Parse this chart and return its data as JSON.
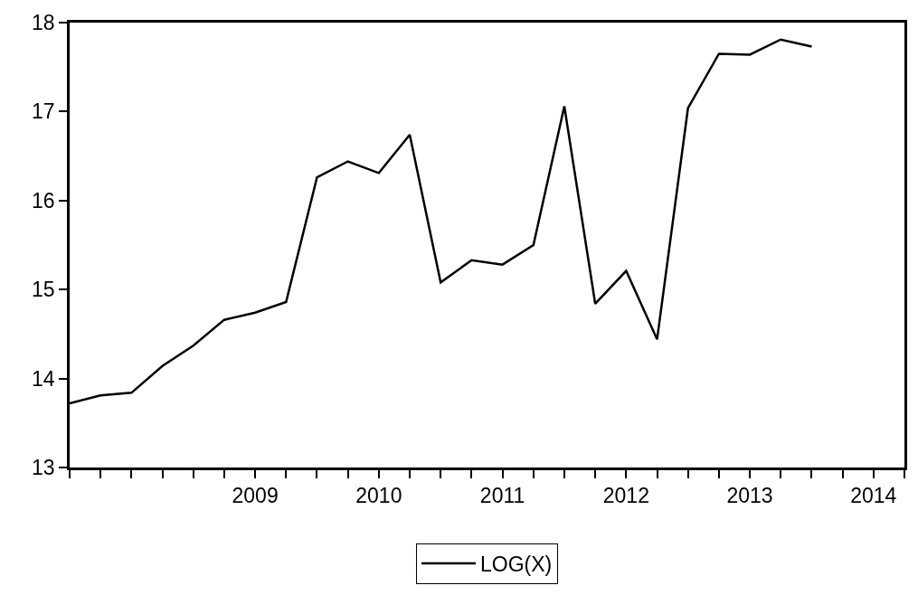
{
  "chart_data": {
    "type": "line",
    "x": [
      2008,
      2008.25,
      2008.5,
      2008.75,
      2009,
      2009.25,
      2009.5,
      2009.75,
      2010,
      2010.25,
      2010.5,
      2010.75,
      2011,
      2011.25,
      2011.5,
      2011.75,
      2012,
      2012.25,
      2012.5,
      2012.75,
      2013,
      2013.25,
      2013.5,
      2013.75,
      2014
    ],
    "series": [
      {
        "name": "LOG(X)",
        "color": "#000000",
        "values": [
          13.72,
          13.81,
          13.84,
          14.14,
          14.37,
          14.66,
          14.74,
          14.86,
          16.26,
          16.44,
          16.31,
          16.74,
          15.08,
          15.33,
          15.28,
          15.5,
          17.06,
          14.84,
          15.21,
          14.44,
          17.04,
          17.65,
          17.64,
          17.81,
          17.73
        ]
      }
    ],
    "xlim": [
      2008,
      2014.75
    ],
    "xticks": [
      {
        "value": 2008,
        "label": null
      },
      {
        "value": 2008.25,
        "label": null
      },
      {
        "value": 2008.5,
        "label": null
      },
      {
        "value": 2008.75,
        "label": null
      },
      {
        "value": 2009,
        "label": null
      },
      {
        "value": 2009.25,
        "label": null
      },
      {
        "value": 2009.5,
        "label": "2009"
      },
      {
        "value": 2009.75,
        "label": null
      },
      {
        "value": 2010,
        "label": null
      },
      {
        "value": 2010.25,
        "label": null
      },
      {
        "value": 2010.5,
        "label": "2010"
      },
      {
        "value": 2010.75,
        "label": null
      },
      {
        "value": 2011,
        "label": null
      },
      {
        "value": 2011.25,
        "label": null
      },
      {
        "value": 2011.5,
        "label": "2011"
      },
      {
        "value": 2011.75,
        "label": null
      },
      {
        "value": 2012,
        "label": null
      },
      {
        "value": 2012.25,
        "label": null
      },
      {
        "value": 2012.5,
        "label": "2012"
      },
      {
        "value": 2012.75,
        "label": null
      },
      {
        "value": 2013,
        "label": null
      },
      {
        "value": 2013.25,
        "label": null
      },
      {
        "value": 2013.5,
        "label": "2013"
      },
      {
        "value": 2013.75,
        "label": null
      },
      {
        "value": 2014,
        "label": null
      },
      {
        "value": 2014.25,
        "label": null
      },
      {
        "value": 2014.5,
        "label": "2014"
      },
      {
        "value": 2014.75,
        "label": null
      }
    ],
    "ylim": [
      13,
      18
    ],
    "yticks": [
      13,
      14,
      15,
      16,
      17,
      18
    ],
    "legend": "bottom",
    "marker": "none",
    "line_style": "solid"
  }
}
